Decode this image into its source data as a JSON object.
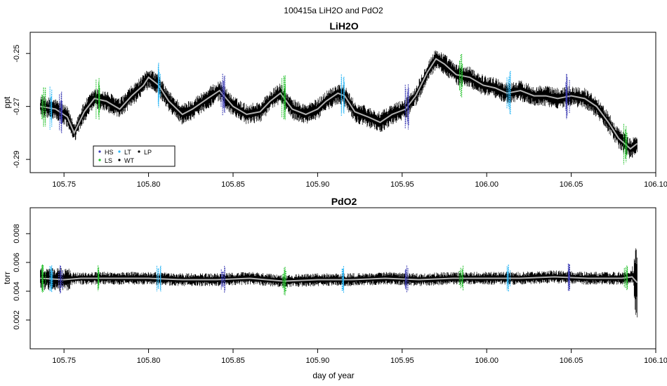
{
  "figure": {
    "suptitle": "100415a   LiH2O and PdO2",
    "xlabel": "day of year"
  },
  "legend": {
    "items": [
      {
        "label": "HS",
        "color": "#3b3bb3"
      },
      {
        "label": "LT",
        "color": "#29b6f6"
      },
      {
        "label": "LP",
        "color": "#000000"
      },
      {
        "label": "LS",
        "color": "#22c02a"
      },
      {
        "label": "WT",
        "color": "#000000"
      }
    ]
  },
  "chart_data": [
    {
      "type": "line",
      "title": "LiH2O",
      "ylabel": "ppt",
      "xlim": [
        105.73,
        106.1
      ],
      "ylim": [
        -0.295,
        -0.242
      ],
      "xticks": [
        "105.75",
        "105.80",
        "105.85",
        "105.90",
        "105.95",
        "106.00",
        "106.05",
        "106.10"
      ],
      "yticks": [
        "-0.25",
        "-0.27",
        "-0.29"
      ],
      "ytick_values": [
        -0.25,
        -0.27,
        -0.29
      ],
      "colors": {
        "raw": "#000000",
        "smooth": "#b0b0b0"
      },
      "series": [
        {
          "name": "",
          "x": [
            105.736,
            105.745,
            105.752,
            105.756,
            105.762,
            105.768,
            105.775,
            105.783,
            105.79,
            105.797,
            105.8,
            105.806,
            105.812,
            105.82,
            105.826,
            105.835,
            105.842,
            105.85,
            105.858,
            105.866,
            105.872,
            105.878,
            105.885,
            105.893,
            105.9,
            105.905,
            105.912,
            105.916,
            105.922,
            105.93,
            105.937,
            105.944,
            105.952,
            105.958,
            105.965,
            105.97,
            105.975,
            105.982,
            105.99,
            105.998,
            106.005,
            106.012,
            106.02,
            106.028,
            106.035,
            106.042,
            106.05,
            106.058,
            106.065,
            106.072,
            106.078,
            106.085,
            106.089
          ],
          "y": [
            -0.27,
            -0.271,
            -0.274,
            -0.28,
            -0.272,
            -0.267,
            -0.268,
            -0.271,
            -0.266,
            -0.262,
            -0.259,
            -0.262,
            -0.268,
            -0.273,
            -0.271,
            -0.267,
            -0.264,
            -0.27,
            -0.273,
            -0.272,
            -0.268,
            -0.265,
            -0.271,
            -0.273,
            -0.271,
            -0.268,
            -0.265,
            -0.266,
            -0.272,
            -0.274,
            -0.276,
            -0.273,
            -0.271,
            -0.266,
            -0.257,
            -0.252,
            -0.254,
            -0.258,
            -0.259,
            -0.262,
            -0.263,
            -0.265,
            -0.264,
            -0.266,
            -0.266,
            -0.267,
            -0.266,
            -0.267,
            -0.27,
            -0.276,
            -0.282,
            -0.286,
            -0.284
          ],
          "noise": 0.004
        }
      ]
    },
    {
      "type": "line",
      "title": "PdO2",
      "ylabel": "torr",
      "xlim": [
        105.73,
        106.1
      ],
      "ylim": [
        0.0,
        0.0098
      ],
      "xticks": [
        "105.75",
        "105.80",
        "105.85",
        "105.90",
        "105.95",
        "106.00",
        "106.05",
        "106.10"
      ],
      "yticks": [
        "0.002",
        "0.004",
        "0.006",
        "0.008"
      ],
      "ytick_values": [
        0.002,
        0.004,
        0.006,
        0.008
      ],
      "colors": {
        "raw": "#000000",
        "smooth": "#b0b0b0"
      },
      "series": [
        {
          "name": "",
          "x": [
            105.736,
            105.75,
            105.76,
            105.78,
            105.8,
            105.82,
            105.84,
            105.86,
            105.88,
            105.9,
            105.92,
            105.94,
            105.96,
            105.98,
            106.0,
            106.02,
            106.04,
            106.06,
            106.08,
            106.086,
            106.089
          ],
          "y": [
            0.0049,
            0.0048,
            0.0049,
            0.0049,
            0.0049,
            0.0048,
            0.0048,
            0.0049,
            0.0047,
            0.0048,
            0.0048,
            0.0049,
            0.0048,
            0.0049,
            0.0049,
            0.0049,
            0.005,
            0.0049,
            0.0049,
            0.005,
            0.0046
          ],
          "noise": 0.00045
        }
      ]
    }
  ]
}
